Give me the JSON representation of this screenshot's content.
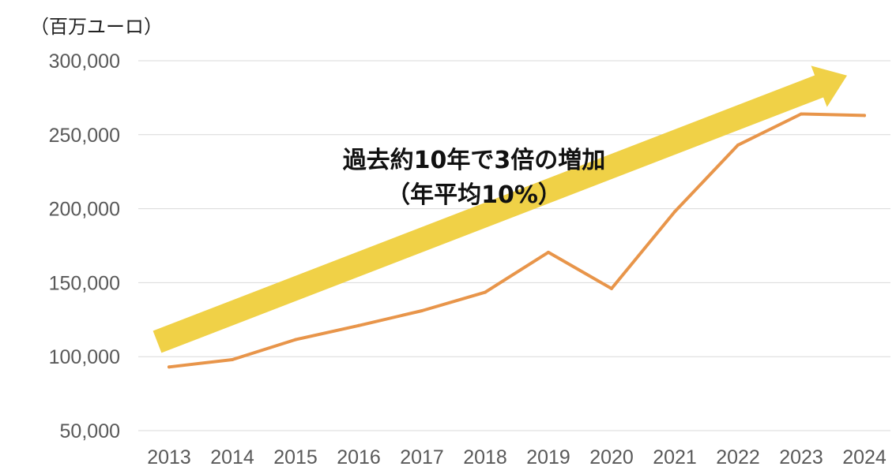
{
  "chart_data": {
    "type": "line",
    "unit_label": "（百万ユーロ）",
    "title": "",
    "xlabel": "",
    "ylabel": "",
    "x": [
      "2013",
      "2014",
      "2015",
      "2016",
      "2017",
      "2018",
      "2019",
      "2020",
      "2021",
      "2022",
      "2023",
      "2024"
    ],
    "series": [
      {
        "values": [
          93000,
          98000,
          111500,
          121000,
          131000,
          143500,
          170500,
          146000,
          198000,
          243000,
          264000,
          263000
        ],
        "color": "#E8954A"
      }
    ],
    "ylim": [
      50000,
      300000
    ],
    "yticks": [
      50000,
      100000,
      150000,
      200000,
      250000,
      300000
    ],
    "ytick_labels": [
      "50,000",
      "100,000",
      "150,000",
      "200,000",
      "250,000",
      "300,000"
    ],
    "grid": true,
    "legend": "none",
    "annotation": {
      "line1": "過去約10年で3倍の増加",
      "line2": "（年平均10%）"
    },
    "trend_arrow": {
      "from": {
        "x": "2013",
        "y": 110000
      },
      "to": {
        "x": "2024",
        "y": 290000
      },
      "color": "#F0D147"
    },
    "colors": {
      "grid": "#D9D9D9",
      "tick_text": "#595959"
    }
  }
}
